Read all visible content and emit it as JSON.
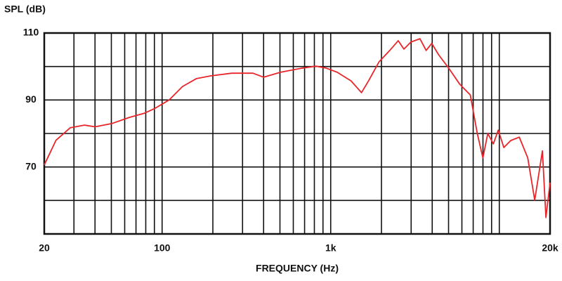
{
  "chart_data": {
    "type": "line",
    "y_label": "SPL (dB)",
    "x_label": "FREQUENCY (Hz)",
    "xscale": "log",
    "grid": true,
    "color": "#e8262a",
    "xlim": [
      20,
      20000
    ],
    "xticks": [
      20,
      {
        "value": 30,
        "label": null
      },
      {
        "value": 40,
        "label": null
      },
      {
        "value": 50,
        "label": null
      },
      {
        "value": 60,
        "label": null
      },
      {
        "value": 70,
        "label": null
      },
      {
        "value": 80,
        "label": null
      },
      {
        "value": 90,
        "label": null
      },
      100,
      {
        "value": 200,
        "label": null
      },
      {
        "value": 300,
        "label": null
      },
      {
        "value": 400,
        "label": null
      },
      {
        "value": 500,
        "label": null
      },
      {
        "value": 600,
        "label": null
      },
      {
        "value": 700,
        "label": null
      },
      {
        "value": 800,
        "label": null
      },
      {
        "value": 900,
        "label": null
      },
      {
        "value": 1000,
        "label": "1k"
      },
      {
        "value": 2000,
        "label": null
      },
      {
        "value": 3000,
        "label": null
      },
      {
        "value": 4000,
        "label": null
      },
      {
        "value": 5000,
        "label": null
      },
      {
        "value": 6000,
        "label": null
      },
      {
        "value": 7000,
        "label": null
      },
      {
        "value": 8000,
        "label": null
      },
      {
        "value": 9000,
        "label": null
      },
      {
        "value": 10000,
        "label": null
      },
      {
        "value": 20000,
        "label": "20k"
      }
    ],
    "ylim": [
      50,
      110
    ],
    "yticks": [
      {
        "value": 60,
        "label": null
      },
      70,
      {
        "value": 80,
        "label": null
      },
      90,
      {
        "value": 100,
        "label": null
      },
      110
    ],
    "x": [
      20,
      23.5,
      28.5,
      34.6,
      40,
      50.6,
      64,
      78,
      90,
      110,
      132,
      160,
      194,
      259,
      346,
      400,
      506,
      675,
      816,
      943,
      1091,
      1320,
      1523,
      1676,
      1936,
      2240,
      2515,
      2718,
      2990,
      3380,
      3683,
      3974,
      4369,
      5046,
      5828,
      6730,
      7404,
      7990,
      8545,
      9220,
      9860,
      10637,
      11700,
      13140,
      14750,
      16220,
      18020,
      18900,
      20000
    ],
    "values": [
      70.6,
      78,
      81.7,
      82.5,
      82,
      83,
      84.8,
      86,
      87.4,
      90,
      94,
      96.4,
      97.2,
      98,
      98,
      96.8,
      98.3,
      99.5,
      100.1,
      99.5,
      98.3,
      95.7,
      92.2,
      95.7,
      101.4,
      104.8,
      107.7,
      105.2,
      107.3,
      108.3,
      104.8,
      106.9,
      103.5,
      99.3,
      94.7,
      91.5,
      80,
      72.7,
      80,
      76.9,
      81,
      75.8,
      77.9,
      78.9,
      72.7,
      60.1,
      74.8,
      54.9,
      65.3
    ]
  }
}
